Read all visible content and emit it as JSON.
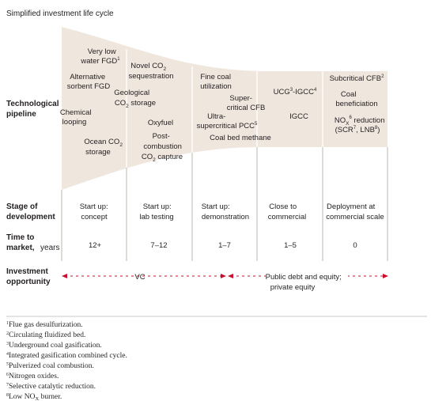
{
  "title": "Simplified investment life cycle",
  "row_labels": {
    "pipeline": [
      "Technological",
      "pipeline"
    ],
    "stage": [
      "Stage of",
      "development"
    ],
    "time": [
      "Time to",
      "market,",
      "years"
    ],
    "investment": [
      "Investment",
      "opportunity"
    ]
  },
  "technologies": {
    "very_low_water_fgd": [
      "Very low",
      "water FGD",
      "1"
    ],
    "alternative_sorbent": [
      "Alternative",
      "sorbent FGD"
    ],
    "chemical_looping": [
      "Chemical",
      "looping"
    ],
    "ocean_co2": [
      "Ocean CO",
      "2",
      "storage"
    ],
    "novel_co2": [
      "Novel CO",
      "2",
      "sequestration"
    ],
    "geological_co2": [
      "Geological",
      "CO",
      "2",
      " storage"
    ],
    "oxyfuel": "Oxyfuel",
    "post_combustion": [
      "Post-",
      "combustion",
      "CO",
      "2",
      " capture"
    ],
    "fine_coal": [
      "Fine coal",
      "utilization"
    ],
    "super_cfb": [
      "Super-",
      "critical CFB"
    ],
    "ultra_pcc": [
      "Ultra-",
      "supercritical PCC",
      "5"
    ],
    "coal_bed_methane": "Coal bed methane",
    "ucg_igcc": [
      "UCG",
      "3",
      "-IGCC",
      "4"
    ],
    "igcc": "IGCC",
    "subcritical_cfb": [
      "Subcritical CFB",
      "2"
    ],
    "coal_beneficiation": [
      "Coal",
      "beneficiation"
    ],
    "nox_reduction": [
      "NO",
      "X",
      "6",
      " reduction",
      "(SCR",
      "7",
      ", LNB",
      "8",
      ")"
    ]
  },
  "stages": [
    [
      "Start up:",
      "concept"
    ],
    [
      "Start up:",
      "lab testing"
    ],
    [
      "Start up:",
      "demonstration"
    ],
    [
      "Close to",
      "commercial"
    ],
    [
      "Deployment at",
      "commercial scale"
    ]
  ],
  "time_to_market": [
    "12+",
    "7–12",
    "1–7",
    "1–5",
    "0"
  ],
  "investment": {
    "vc": "VC",
    "public": [
      "Public debt and equity;",
      "private equity"
    ]
  },
  "footnotes": [
    [
      "1",
      "Flue gas desulfurization."
    ],
    [
      "2",
      "Circulating fluidized bed."
    ],
    [
      "3",
      "Underground coal gasification."
    ],
    [
      "4",
      "Integrated gasification combined cycle."
    ],
    [
      "5",
      "Pulverized coal combustion."
    ],
    [
      "6",
      "Nitrogen oxides."
    ],
    [
      "7",
      "Selective catalytic reduction."
    ],
    [
      "8",
      "Low NO",
      "X",
      " burner."
    ]
  ],
  "colors": {
    "funnel_fill": "#efe6de",
    "arrow": "#c8102e",
    "divider": "#bdb5ad"
  }
}
